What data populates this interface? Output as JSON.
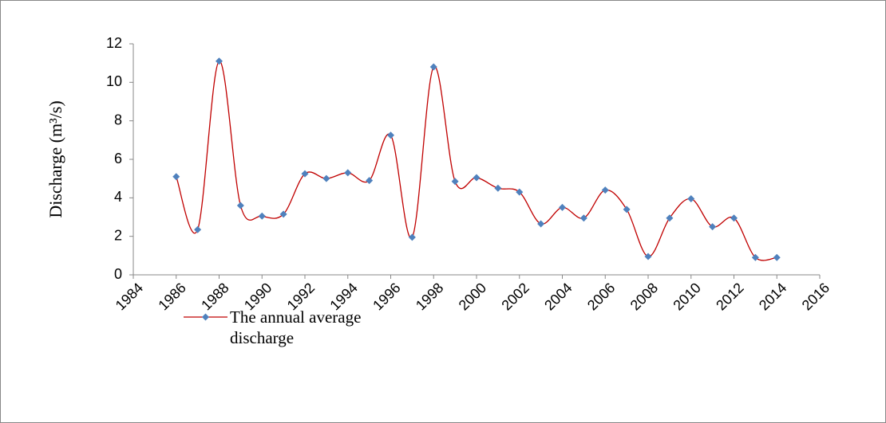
{
  "chart_data": {
    "type": "line",
    "y_label": "Discharge (m³/s)",
    "x": [
      1986,
      1987,
      1988,
      1989,
      1990,
      1991,
      1992,
      1993,
      1994,
      1995,
      1996,
      1997,
      1998,
      1999,
      2000,
      2001,
      2002,
      2003,
      2004,
      2005,
      2006,
      2007,
      2008,
      2009,
      2010,
      2011,
      2012,
      2013,
      2014
    ],
    "series": [
      {
        "name": "The annual average discharge",
        "color": "#c00000",
        "marker_color": "#4f81bd",
        "values": [
          5.1,
          2.35,
          11.1,
          3.6,
          3.05,
          3.15,
          5.25,
          5.0,
          5.3,
          4.9,
          7.25,
          1.95,
          10.8,
          4.85,
          5.05,
          4.5,
          4.3,
          2.65,
          3.5,
          2.95,
          4.4,
          3.4,
          0.95,
          2.95,
          3.95,
          2.5,
          2.95,
          0.9,
          0.9
        ]
      }
    ],
    "xlim": [
      1984,
      2016
    ],
    "xticks": [
      1984,
      1986,
      1988,
      1990,
      1992,
      1994,
      1996,
      1998,
      2000,
      2002,
      2004,
      2006,
      2008,
      2010,
      2012,
      2014,
      2016
    ],
    "ylim": [
      0,
      12
    ],
    "yticks": [
      0,
      2,
      4,
      6,
      8,
      10,
      12
    ],
    "smooth": true
  }
}
